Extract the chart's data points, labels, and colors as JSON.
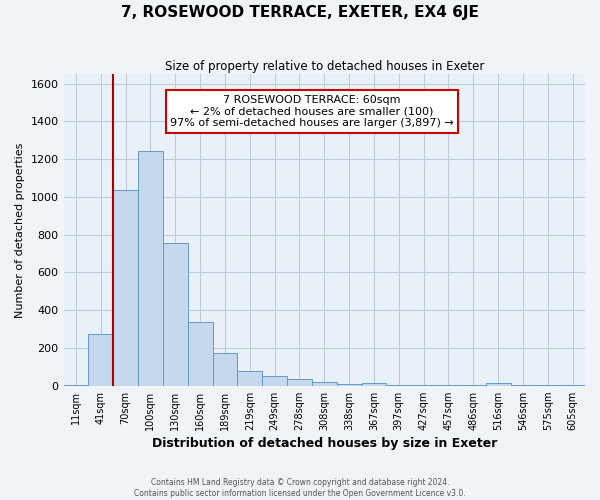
{
  "title": "7, ROSEWOOD TERRACE, EXETER, EX4 6JE",
  "subtitle": "Size of property relative to detached houses in Exeter",
  "xlabel": "Distribution of detached houses by size in Exeter",
  "ylabel": "Number of detached properties",
  "bar_labels": [
    "11sqm",
    "41sqm",
    "70sqm",
    "100sqm",
    "130sqm",
    "160sqm",
    "189sqm",
    "219sqm",
    "249sqm",
    "278sqm",
    "308sqm",
    "338sqm",
    "367sqm",
    "397sqm",
    "427sqm",
    "457sqm",
    "486sqm",
    "516sqm",
    "546sqm",
    "575sqm",
    "605sqm"
  ],
  "bar_values": [
    5,
    275,
    1035,
    1245,
    755,
    335,
    175,
    80,
    50,
    38,
    20,
    8,
    12,
    5,
    5,
    5,
    5,
    12,
    3,
    3,
    3
  ],
  "bar_color": "#c5d8ed",
  "bar_edge_color": "#6699cc",
  "ylim": [
    0,
    1650
  ],
  "yticks": [
    0,
    200,
    400,
    600,
    800,
    1000,
    1200,
    1400,
    1600
  ],
  "property_line_color": "#aa0000",
  "annotation_title": "7 ROSEWOOD TERRACE: 60sqm",
  "annotation_line1": "← 2% of detached houses are smaller (100)",
  "annotation_line2": "97% of semi-detached houses are larger (3,897) →",
  "annotation_box_color": "#ffffff",
  "annotation_box_edge": "#cc0000",
  "footer_line1": "Contains HM Land Registry data © Crown copyright and database right 2024.",
  "footer_line2": "Contains public sector information licensed under the Open Government Licence v3.0.",
  "background_color": "#f0f4f8",
  "plot_background_color": "#e8f0f8",
  "grid_color": "#c0ccd8"
}
